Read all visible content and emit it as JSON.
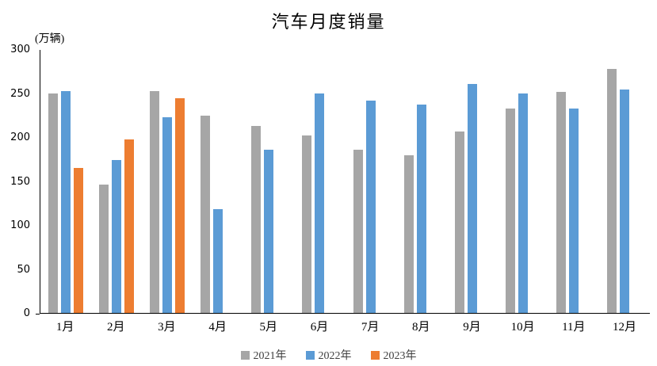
{
  "chart_data": {
    "type": "bar",
    "title": "汽车月度销量",
    "unit_label": "(万辆)",
    "categories": [
      "1月",
      "2月",
      "3月",
      "4月",
      "5月",
      "6月",
      "7月",
      "8月",
      "9月",
      "10月",
      "11月",
      "12月"
    ],
    "series": [
      {
        "name": "2021年",
        "color": "#A6A6A6",
        "values": [
          250,
          146,
          253,
          225,
          213,
          202,
          186,
          180,
          207,
          233,
          252,
          278
        ]
      },
      {
        "name": "2022年",
        "color": "#5B9BD5",
        "values": [
          253,
          174,
          223,
          118,
          186,
          250,
          242,
          238,
          261,
          250,
          233,
          255
        ]
      },
      {
        "name": "2023年",
        "color": "#ED7D31",
        "values": [
          165,
          198,
          245,
          null,
          null,
          null,
          null,
          null,
          null,
          null,
          null,
          null
        ]
      }
    ],
    "ylim": [
      0,
      300
    ],
    "yticks": [
      0,
      50,
      100,
      150,
      200,
      250,
      300
    ],
    "grid": false,
    "legend_position": "bottom",
    "axis_color": "#000000"
  }
}
